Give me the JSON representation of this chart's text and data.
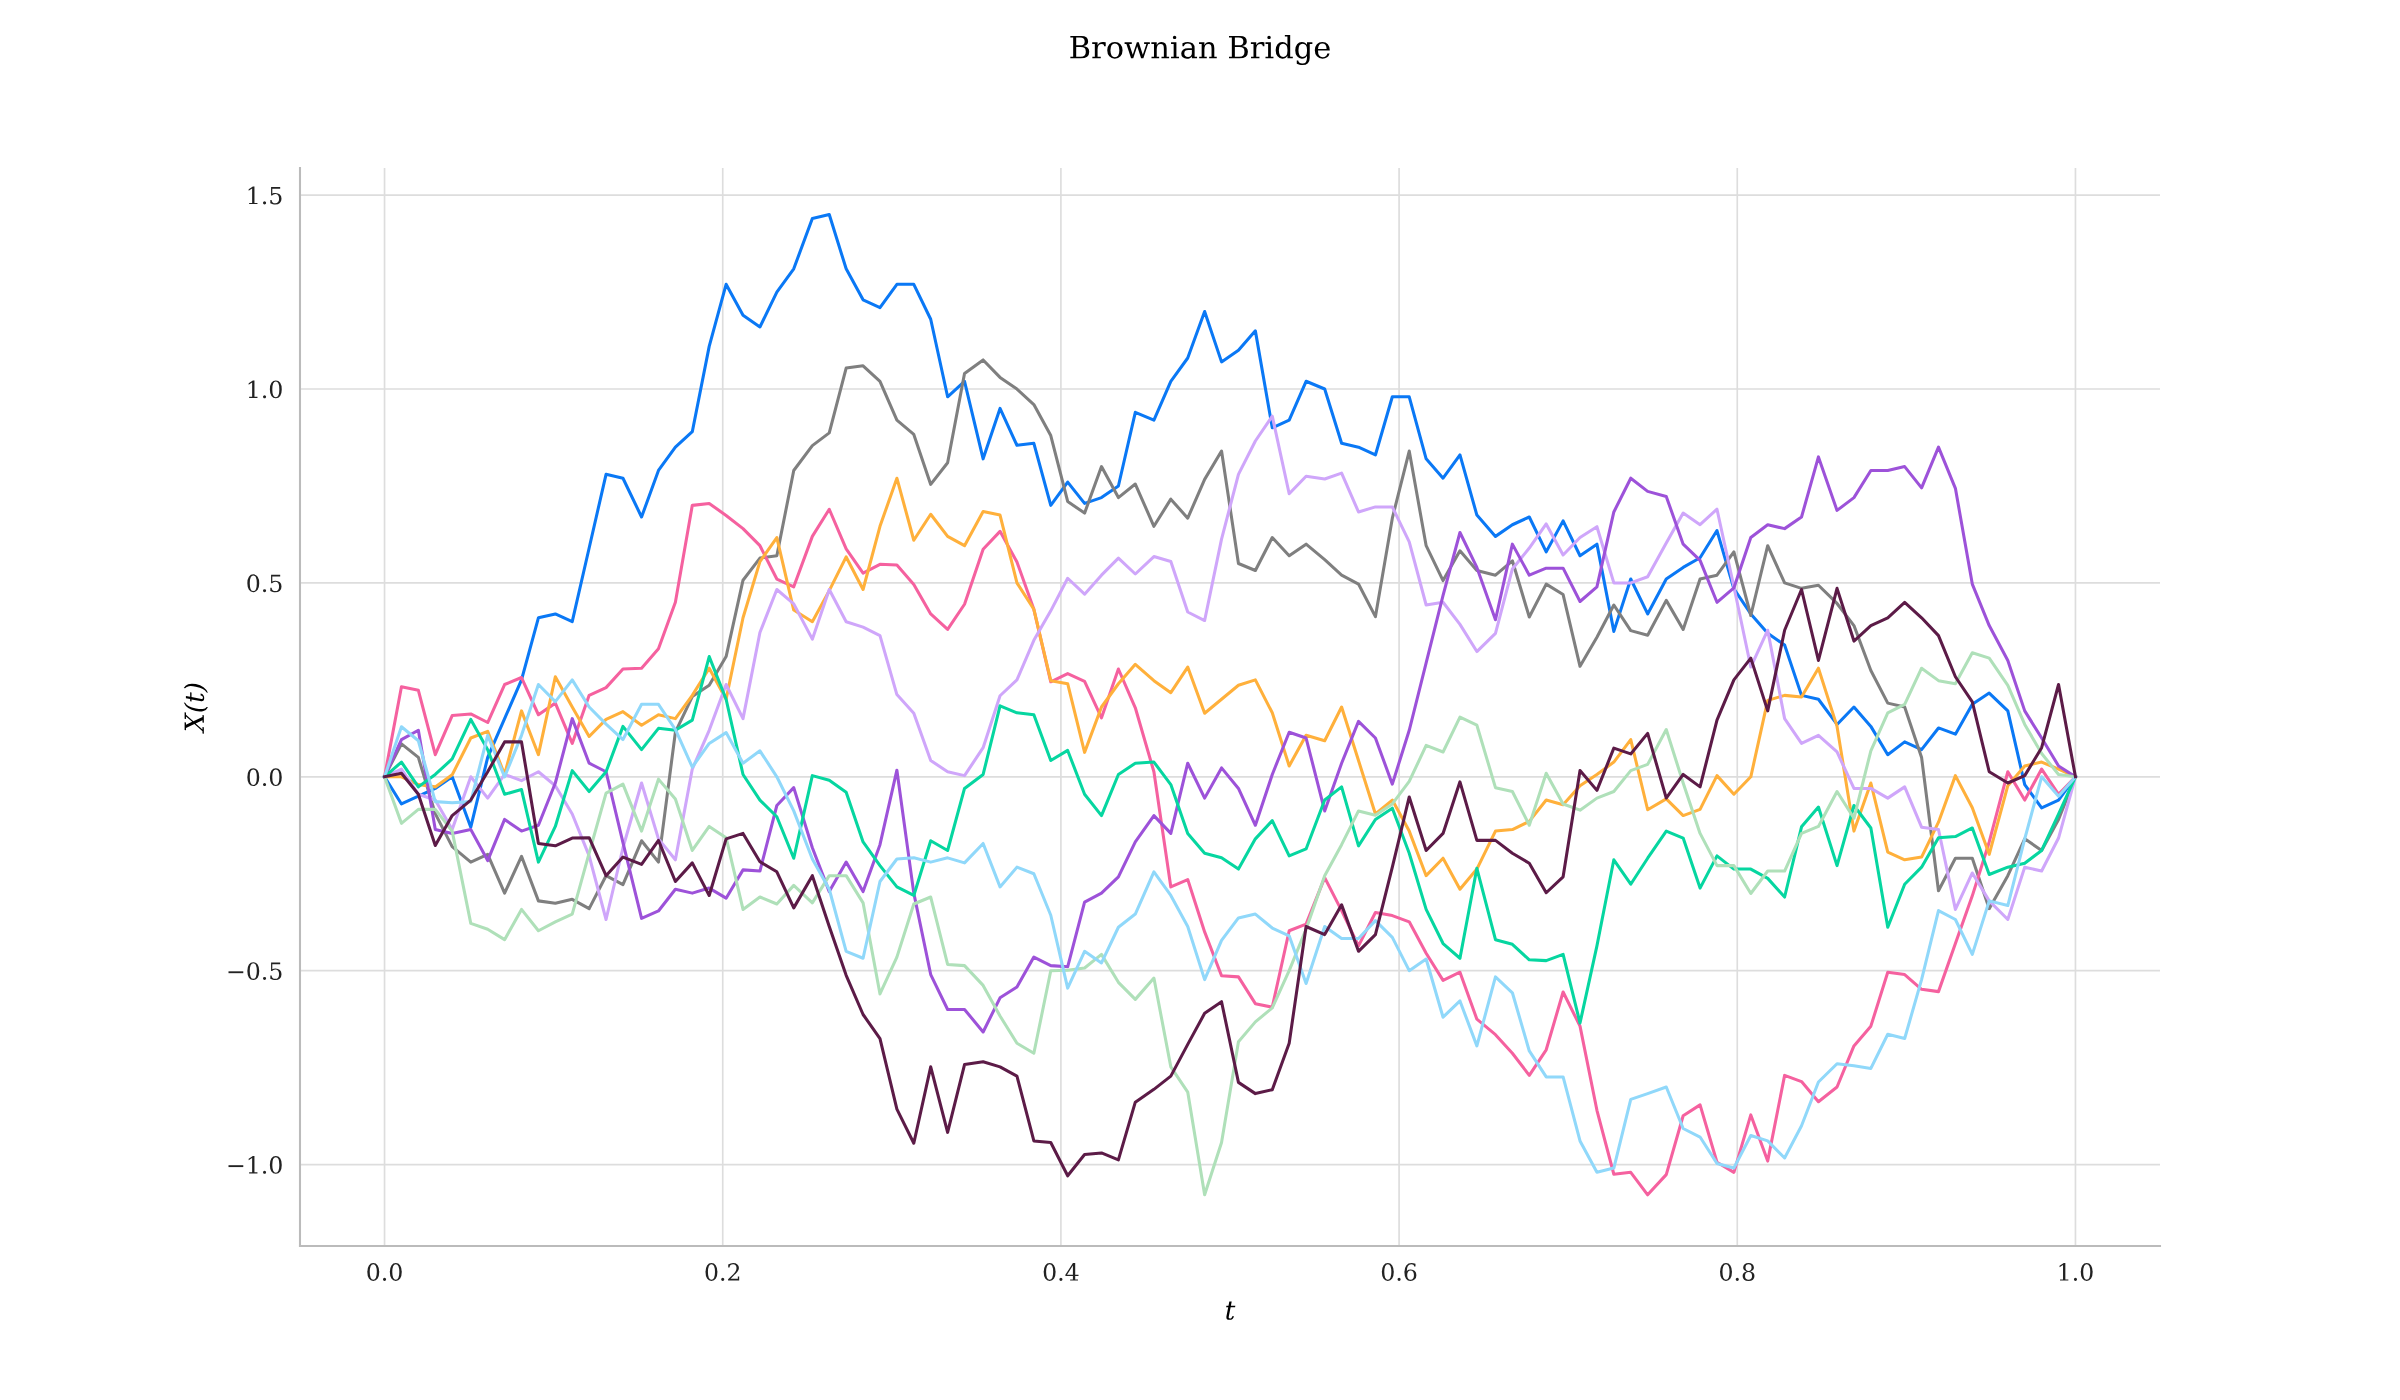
{
  "chart_data": {
    "type": "line",
    "title": "Brownian Bridge",
    "xlabel": "t",
    "ylabel": "X(t)",
    "x": [
      0,
      0.01,
      0.02,
      0.03,
      0.04,
      0.051,
      0.061,
      0.071,
      0.081,
      0.091,
      0.101,
      0.111,
      0.121,
      0.131,
      0.141,
      0.152,
      0.162,
      0.172,
      0.182,
      0.192,
      0.202,
      0.212,
      0.222,
      0.232,
      0.242,
      0.253,
      0.263,
      0.273,
      0.283,
      0.293,
      0.303,
      0.313,
      0.323,
      0.333,
      0.343,
      0.354,
      0.364,
      0.374,
      0.384,
      0.394,
      0.404,
      0.414,
      0.424,
      0.434,
      0.444,
      0.455,
      0.465,
      0.475,
      0.485,
      0.495,
      0.505,
      0.515,
      0.525,
      0.535,
      0.545,
      0.556,
      0.566,
      0.576,
      0.586,
      0.596,
      0.606,
      0.616,
      0.626,
      0.636,
      0.646,
      0.657,
      0.667,
      0.677,
      0.687,
      0.697,
      0.707,
      0.717,
      0.727,
      0.737,
      0.747,
      0.758,
      0.768,
      0.778,
      0.788,
      0.798,
      0.808,
      0.818,
      0.828,
      0.838,
      0.848,
      0.859,
      0.869,
      0.879,
      0.889,
      0.899,
      0.909,
      0.919,
      0.929,
      0.939,
      0.949,
      0.96,
      0.97,
      0.98,
      0.99,
      1
    ],
    "series": [
      {
        "color": "#0a78f5",
        "values": [
          0,
          -0.07,
          -0.05,
          -0.03,
          0,
          -0.13,
          0.05,
          0.15,
          0.25,
          0.41,
          0.42,
          0.4,
          0.59,
          0.78,
          0.77,
          0.67,
          0.79,
          0.85,
          0.89,
          1.11,
          1.27,
          1.19,
          1.16,
          1.25,
          1.31,
          1.44,
          1.45,
          1.31,
          1.23,
          1.21,
          1.27,
          1.27,
          1.18,
          0.98,
          1.02,
          0.82,
          0.95,
          0.855,
          0.86,
          0.7,
          0.76,
          0.705,
          0.72,
          0.75,
          0.94,
          0.92,
          1.02,
          1.08,
          1.2,
          1.07,
          1.1,
          1.15,
          0.9,
          0.92,
          1.02,
          1.0,
          0.86,
          0.85,
          0.83,
          0.98,
          0.98,
          0.82,
          0.77,
          0.83,
          0.675,
          0.62,
          0.65,
          0.67,
          0.58,
          0.66,
          0.57,
          0.6,
          0.375,
          0.51,
          0.42,
          0.51,
          0.54,
          0.565,
          0.635,
          0.485,
          0.42,
          0.37,
          0.34,
          0.21,
          0.2,
          0.135,
          0.18,
          0.13,
          0.057,
          0.09,
          0.07,
          0.126,
          0.11,
          0.187,
          0.216,
          0.17,
          -0.02,
          -0.08,
          -0.06,
          0
        ]
      },
      {
        "color": "#7f7f7f",
        "values": [
          0,
          0.085,
          0.05,
          -0.095,
          -0.18,
          -0.22,
          -0.2,
          -0.3,
          -0.205,
          -0.32,
          -0.326,
          -0.316,
          -0.34,
          -0.255,
          -0.278,
          -0.165,
          -0.22,
          0.115,
          0.207,
          0.236,
          0.31,
          0.507,
          0.564,
          0.57,
          0.79,
          0.854,
          0.887,
          1.054,
          1.06,
          1.02,
          0.92,
          0.883,
          0.754,
          0.81,
          1.04,
          1.075,
          1.03,
          1.0,
          0.96,
          0.88,
          0.71,
          0.68,
          0.8,
          0.72,
          0.755,
          0.646,
          0.716,
          0.667,
          0.767,
          0.84,
          0.55,
          0.532,
          0.617,
          0.57,
          0.6,
          0.56,
          0.52,
          0.497,
          0.413,
          0.667,
          0.84,
          0.596,
          0.506,
          0.583,
          0.532,
          0.52,
          0.557,
          0.412,
          0.497,
          0.47,
          0.285,
          0.36,
          0.443,
          0.377,
          0.365,
          0.455,
          0.38,
          0.51,
          0.52,
          0.58,
          0.416,
          0.596,
          0.5,
          0.486,
          0.494,
          0.447,
          0.39,
          0.274,
          0.19,
          0.18,
          0.05,
          -0.294,
          -0.21,
          -0.21,
          -0.34,
          -0.255,
          -0.16,
          -0.19,
          -0.11,
          0
        ]
      },
      {
        "color": "#f5619f",
        "values": [
          0,
          0.232,
          0.223,
          0.057,
          0.158,
          0.162,
          0.14,
          0.238,
          0.256,
          0.16,
          0.19,
          0.086,
          0.21,
          0.23,
          0.278,
          0.28,
          0.33,
          0.45,
          0.7,
          0.705,
          0.674,
          0.64,
          0.596,
          0.51,
          0.49,
          0.62,
          0.69,
          0.588,
          0.525,
          0.548,
          0.546,
          0.496,
          0.42,
          0.38,
          0.445,
          0.587,
          0.633,
          0.554,
          0.432,
          0.245,
          0.266,
          0.246,
          0.152,
          0.278,
          0.178,
          0.013,
          -0.284,
          -0.265,
          -0.4,
          -0.513,
          -0.516,
          -0.585,
          -0.594,
          -0.397,
          -0.38,
          -0.26,
          -0.345,
          -0.436,
          -0.35,
          -0.358,
          -0.374,
          -0.455,
          -0.525,
          -0.504,
          -0.625,
          -0.665,
          -0.713,
          -0.77,
          -0.704,
          -0.555,
          -0.643,
          -0.86,
          -1.025,
          -1.02,
          -1.078,
          -1.026,
          -0.874,
          -0.846,
          -0.994,
          -1.02,
          -0.872,
          -0.991,
          -0.77,
          -0.786,
          -0.838,
          -0.8,
          -0.694,
          -0.643,
          -0.504,
          -0.51,
          -0.548,
          -0.554,
          -0.43,
          -0.307,
          -0.168,
          0.013,
          -0.06,
          0.02,
          -0.045,
          0
        ]
      },
      {
        "color": "#ffb03b",
        "values": [
          0,
          0,
          -0.02,
          -0.026,
          0.005,
          0.1,
          0.117,
          0.006,
          0.17,
          0.057,
          0.258,
          0.18,
          0.104,
          0.148,
          0.168,
          0.133,
          0.16,
          0.15,
          0.21,
          0.28,
          0.2,
          0.41,
          0.555,
          0.617,
          0.43,
          0.4,
          0.48,
          0.567,
          0.483,
          0.646,
          0.77,
          0.61,
          0.677,
          0.62,
          0.596,
          0.684,
          0.675,
          0.5,
          0.432,
          0.248,
          0.24,
          0.063,
          0.18,
          0.24,
          0.29,
          0.248,
          0.217,
          0.283,
          0.164,
          0.2,
          0.236,
          0.25,
          0.165,
          0.028,
          0.107,
          0.093,
          0.18,
          0.042,
          -0.096,
          -0.06,
          -0.14,
          -0.255,
          -0.21,
          -0.29,
          -0.238,
          -0.14,
          -0.136,
          -0.115,
          -0.06,
          -0.072,
          -0.023,
          0.006,
          0.038,
          0.096,
          -0.085,
          -0.057,
          -0.1,
          -0.084,
          0.003,
          -0.045,
          0,
          0.197,
          0.21,
          0.206,
          0.28,
          0.13,
          -0.14,
          -0.016,
          -0.194,
          -0.214,
          -0.207,
          -0.117,
          0.003,
          -0.08,
          -0.2,
          -0.023,
          0.028,
          0.038,
          0.02,
          0
        ]
      },
      {
        "color": "#cfa6fa",
        "values": [
          0,
          0.02,
          -0.045,
          -0.06,
          -0.136,
          0,
          -0.055,
          0.006,
          -0.01,
          0.013,
          -0.023,
          -0.096,
          -0.204,
          -0.368,
          -0.183,
          -0.016,
          -0.16,
          -0.214,
          0.02,
          0.12,
          0.238,
          0.15,
          0.372,
          0.483,
          0.446,
          0.355,
          0.483,
          0.4,
          0.386,
          0.364,
          0.212,
          0.164,
          0.042,
          0.013,
          0.003,
          0.075,
          0.209,
          0.25,
          0.352,
          0.428,
          0.512,
          0.471,
          0.52,
          0.564,
          0.523,
          0.568,
          0.555,
          0.425,
          0.403,
          0.613,
          0.78,
          0.866,
          0.93,
          0.73,
          0.775,
          0.768,
          0.783,
          0.683,
          0.696,
          0.696,
          0.606,
          0.443,
          0.45,
          0.393,
          0.323,
          0.37,
          0.536,
          0.59,
          0.652,
          0.572,
          0.617,
          0.645,
          0.5,
          0.5,
          0.516,
          0.603,
          0.68,
          0.65,
          0.69,
          0.49,
          0.283,
          0.378,
          0.15,
          0.086,
          0.107,
          0.064,
          -0.03,
          -0.03,
          -0.055,
          -0.026,
          -0.13,
          -0.136,
          -0.342,
          -0.248,
          -0.32,
          -0.368,
          -0.233,
          -0.243,
          -0.158,
          0
        ]
      },
      {
        "color": "#9d52d9",
        "values": [
          0,
          0.096,
          0.12,
          -0.136,
          -0.146,
          -0.136,
          -0.216,
          -0.11,
          -0.14,
          -0.125,
          -0.016,
          0.15,
          0.035,
          0.013,
          -0.17,
          -0.365,
          -0.346,
          -0.29,
          -0.3,
          -0.287,
          -0.313,
          -0.24,
          -0.243,
          -0.074,
          -0.028,
          -0.183,
          -0.296,
          -0.22,
          -0.296,
          -0.175,
          0.017,
          -0.3,
          -0.51,
          -0.6,
          -0.6,
          -0.658,
          -0.57,
          -0.542,
          -0.465,
          -0.487,
          -0.49,
          -0.323,
          -0.3,
          -0.258,
          -0.168,
          -0.1,
          -0.146,
          0.035,
          -0.055,
          0.023,
          -0.03,
          -0.125,
          0.006,
          0.115,
          0.1,
          -0.088,
          0.035,
          0.143,
          0.1,
          -0.019,
          0.12,
          0.294,
          0.468,
          0.63,
          0.54,
          0.405,
          0.6,
          0.52,
          0.538,
          0.538,
          0.452,
          0.49,
          0.683,
          0.77,
          0.736,
          0.723,
          0.6,
          0.558,
          0.45,
          0.487,
          0.617,
          0.65,
          0.64,
          0.67,
          0.825,
          0.687,
          0.72,
          0.79,
          0.79,
          0.8,
          0.745,
          0.85,
          0.744,
          0.497,
          0.39,
          0.3,
          0.17,
          0.1,
          0.028,
          0
        ]
      },
      {
        "color": "#06d6a0",
        "values": [
          0,
          0.038,
          -0.026,
          0.006,
          0.046,
          0.148,
          0.07,
          -0.045,
          -0.033,
          -0.22,
          -0.128,
          0.016,
          -0.038,
          0.013,
          0.13,
          0.07,
          0.125,
          0.12,
          0.146,
          0.31,
          0.2,
          0.006,
          -0.06,
          -0.103,
          -0.21,
          0.003,
          -0.009,
          -0.04,
          -0.168,
          -0.229,
          -0.284,
          -0.306,
          -0.165,
          -0.19,
          -0.03,
          0.006,
          0.183,
          0.165,
          0.16,
          0.042,
          0.068,
          -0.045,
          -0.1,
          0.006,
          0.035,
          0.038,
          -0.02,
          -0.146,
          -0.197,
          -0.209,
          -0.238,
          -0.16,
          -0.113,
          -0.204,
          -0.186,
          -0.06,
          -0.026,
          -0.178,
          -0.11,
          -0.081,
          -0.197,
          -0.342,
          -0.43,
          -0.468,
          -0.236,
          -0.42,
          -0.432,
          -0.472,
          -0.474,
          -0.458,
          -0.635,
          -0.436,
          -0.214,
          -0.277,
          -0.21,
          -0.14,
          -0.158,
          -0.287,
          -0.204,
          -0.238,
          -0.238,
          -0.262,
          -0.31,
          -0.129,
          -0.078,
          -0.229,
          -0.074,
          -0.132,
          -0.388,
          -0.277,
          -0.233,
          -0.157,
          -0.154,
          -0.132,
          -0.252,
          -0.233,
          -0.223,
          -0.19,
          -0.096,
          0
        ]
      },
      {
        "color": "#afe0b9",
        "values": [
          0,
          -0.12,
          -0.084,
          -0.084,
          -0.14,
          -0.378,
          -0.393,
          -0.42,
          -0.342,
          -0.397,
          -0.374,
          -0.354,
          -0.197,
          -0.042,
          -0.019,
          -0.14,
          -0.006,
          -0.057,
          -0.19,
          -0.128,
          -0.157,
          -0.342,
          -0.31,
          -0.328,
          -0.28,
          -0.325,
          -0.255,
          -0.255,
          -0.325,
          -0.56,
          -0.465,
          -0.328,
          -0.31,
          -0.484,
          -0.487,
          -0.538,
          -0.617,
          -0.687,
          -0.713,
          -0.5,
          -0.499,
          -0.493,
          -0.458,
          -0.53,
          -0.574,
          -0.519,
          -0.748,
          -0.813,
          -1.078,
          -0.943,
          -0.683,
          -0.632,
          -0.596,
          -0.5,
          -0.393,
          -0.255,
          -0.175,
          -0.088,
          -0.099,
          -0.07,
          -0.012,
          0.081,
          0.064,
          0.154,
          0.133,
          -0.028,
          -0.038,
          -0.125,
          0.009,
          -0.07,
          -0.086,
          -0.055,
          -0.038,
          0.016,
          0.032,
          0.122,
          -0.016,
          -0.146,
          -0.229,
          -0.229,
          -0.301,
          -0.243,
          -0.243,
          -0.146,
          -0.128,
          -0.038,
          -0.107,
          0.067,
          0.165,
          0.187,
          0.28,
          0.248,
          0.24,
          0.32,
          0.306,
          0.236,
          0.135,
          0.06,
          0.006,
          0
        ]
      },
      {
        "color": "#90d8fa",
        "values": [
          0,
          0.129,
          0.093,
          -0.064,
          -0.067,
          -0.064,
          0.107,
          0,
          0.107,
          0.238,
          0.194,
          0.25,
          0.18,
          0.136,
          0.096,
          0.187,
          0.187,
          0.122,
          0.025,
          0.086,
          0.114,
          0.035,
          0.067,
          0,
          -0.088,
          -0.212,
          -0.29,
          -0.45,
          -0.468,
          -0.27,
          -0.212,
          -0.209,
          -0.22,
          -0.209,
          -0.222,
          -0.172,
          -0.284,
          -0.233,
          -0.25,
          -0.357,
          -0.545,
          -0.45,
          -0.48,
          -0.388,
          -0.354,
          -0.245,
          -0.306,
          -0.386,
          -0.523,
          -0.422,
          -0.364,
          -0.354,
          -0.39,
          -0.41,
          -0.533,
          -0.386,
          -0.417,
          -0.417,
          -0.371,
          -0.414,
          -0.5,
          -0.47,
          -0.62,
          -0.578,
          -0.694,
          -0.516,
          -0.557,
          -0.707,
          -0.774,
          -0.774,
          -0.939,
          -1.02,
          -1.009,
          -0.832,
          -0.817,
          -0.8,
          -0.907,
          -0.929,
          -0.997,
          -1.009,
          -0.925,
          -0.939,
          -0.983,
          -0.9,
          -0.787,
          -0.74,
          -0.745,
          -0.752,
          -0.664,
          -0.675,
          -0.523,
          -0.345,
          -0.368,
          -0.458,
          -0.32,
          -0.332,
          -0.16,
          0,
          -0.05,
          0
        ]
      },
      {
        "color": "#5c1b47",
        "values": [
          0,
          0.009,
          -0.045,
          -0.177,
          -0.1,
          -0.06,
          0.013,
          0.09,
          0.09,
          -0.172,
          -0.178,
          -0.158,
          -0.157,
          -0.255,
          -0.207,
          -0.226,
          -0.164,
          -0.27,
          -0.222,
          -0.306,
          -0.16,
          -0.146,
          -0.219,
          -0.245,
          -0.338,
          -0.255,
          -0.386,
          -0.512,
          -0.613,
          -0.675,
          -0.857,
          -0.945,
          -0.748,
          -0.917,
          -0.742,
          -0.735,
          -0.748,
          -0.772,
          -0.939,
          -0.943,
          -1.029,
          -0.974,
          -0.97,
          -0.988,
          -0.839,
          -0.806,
          -0.772,
          -0.69,
          -0.61,
          -0.58,
          -0.788,
          -0.817,
          -0.807,
          -0.687,
          -0.386,
          -0.407,
          -0.33,
          -0.45,
          -0.407,
          -0.233,
          -0.052,
          -0.19,
          -0.146,
          -0.013,
          -0.164,
          -0.164,
          -0.197,
          -0.223,
          -0.299,
          -0.258,
          0.016,
          -0.035,
          0.074,
          0.059,
          0.112,
          -0.055,
          0.006,
          -0.026,
          0.146,
          0.25,
          0.306,
          0.17,
          0.378,
          0.483,
          0.3,
          0.486,
          0.35,
          0.39,
          0.41,
          0.45,
          0.41,
          0.364,
          0.258,
          0.193,
          0.013,
          -0.016,
          0.003,
          0.075,
          0.238,
          0
        ]
      }
    ],
    "xlim": [
      -0.05,
      1.05
    ],
    "ylim": [
      -1.21,
      1.57
    ],
    "xticks": [
      {
        "value": 0,
        "label": "0.0"
      },
      0.2,
      0.4,
      0.6,
      0.8,
      {
        "value": 1,
        "label": "1.0"
      }
    ],
    "yticks": [
      {
        "value": -1,
        "label": "−1.0"
      },
      {
        "value": -0.5,
        "label": "−0.5"
      },
      {
        "value": 0,
        "label": "0.0"
      },
      0.5,
      {
        "value": 1,
        "label": "1.0"
      },
      1.5
    ],
    "grid": true,
    "line_style": "solid",
    "marker": "none"
  }
}
